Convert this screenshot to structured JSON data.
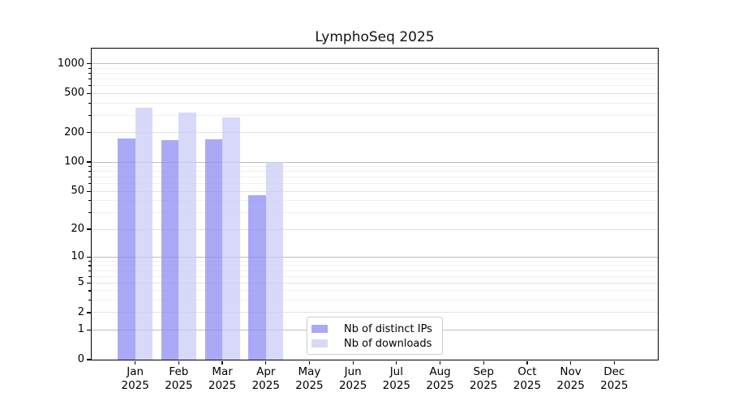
{
  "chart_data": {
    "type": "bar",
    "title": "LymphoSeq 2025",
    "year": "2025",
    "categories": [
      "Jan",
      "Feb",
      "Mar",
      "Apr",
      "May",
      "Jun",
      "Jul",
      "Aug",
      "Sep",
      "Oct",
      "Nov",
      "Dec"
    ],
    "series": [
      {
        "name": "Nb of distinct IPs",
        "color": "#8c8cf4",
        "values": [
          175,
          168,
          171,
          46,
          0,
          0,
          0,
          0,
          0,
          0,
          0,
          0
        ]
      },
      {
        "name": "Nb of downloads",
        "color": "#cbcbf6",
        "values": [
          360,
          318,
          288,
          100,
          0,
          0,
          0,
          0,
          0,
          0,
          0,
          0
        ]
      }
    ],
    "bar_alpha": 0.75,
    "scale": "log1p",
    "ylim": [
      0,
      1430
    ],
    "y_ticks_labeled": [
      0,
      1,
      2,
      5,
      10,
      20,
      50,
      100,
      200,
      500,
      1000
    ],
    "y_gridlines_major": [
      1,
      10,
      100,
      1000
    ],
    "y_gridlines_mid": [
      2,
      5,
      20,
      50,
      200,
      500
    ],
    "y_gridlines_minor": [
      3,
      4,
      6,
      7,
      8,
      9,
      30,
      40,
      60,
      70,
      80,
      90,
      300,
      400,
      600,
      700,
      800,
      900
    ],
    "grid": true,
    "legend": {
      "position": "lower center",
      "entries": [
        "Nb of distinct IPs",
        "Nb of downloads"
      ]
    }
  }
}
